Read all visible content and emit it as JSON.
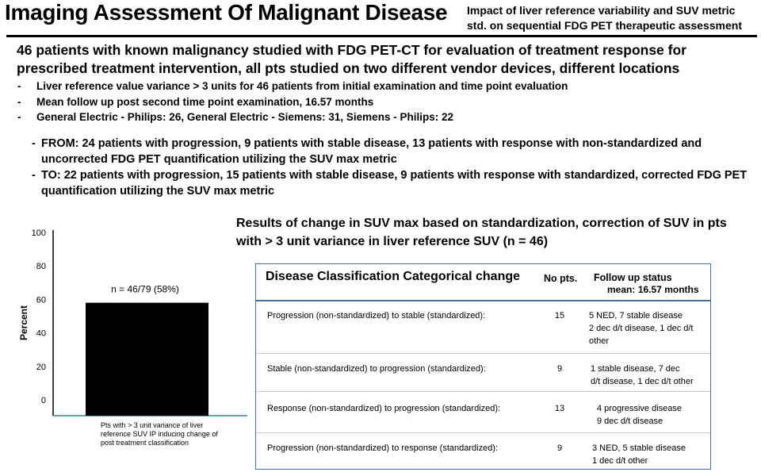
{
  "header": {
    "title": "Imaging Assessment Of Malignant Disease",
    "subtitle": "Impact of liver reference variability  and SUV metric std. on sequential FDG PET therapeutic assessment"
  },
  "lead": "46 patients with known malignancy studied with FDG PET-CT for evaluation of treatment response for prescribed treatment intervention, all pts studied on two different vendor devices, different locations",
  "bullets": [
    "Liver reference value variance > 3 units for 46 patients from initial examination and time point evaluation",
    "Mean follow up post second time point examination, 16.57 months",
    "General Electric - Philips: 26,   General Electric - Siemens: 31,   Siemens - Philips: 22"
  ],
  "from_to": [
    "FROM: 24 patients with progression, 9 patients with stable disease, 13 patients with response with non-standardized  and uncorrected FDG PET quantification  utilizing the SUV max metric",
    "TO: 22 patients with progression, 15 patients with stable disease, 9 patients with response with standardized, corrected FDG PET quantification  utilizing the SUV max metric"
  ],
  "results_heading": "Results of change in SUV max based on standardization, correction of SUV in pts with > 3 unit variance in liver reference SUV (n = 46)",
  "chart_data": {
    "type": "bar",
    "categories": [
      "Pts with > 3 unit variance of liver reference SUV IP inducing change of post treatment classification"
    ],
    "values": [
      58
    ],
    "data_label": "n = 46/79  (58%)",
    "ylabel": "Percent",
    "yticks": [
      0,
      20,
      40,
      60,
      80,
      100
    ],
    "ylim": [
      0,
      100
    ],
    "bar_color": "#000000",
    "baseline_color": "#2e8b8b",
    "grid": false,
    "legend": "none"
  },
  "table": {
    "headers": {
      "classification": "Disease Classification Categorical change",
      "no_pts": "No pts.",
      "follow_up_line1": "Follow up status",
      "follow_up_line2": "mean:",
      "follow_up_value": "16.57 months"
    },
    "rows": [
      {
        "classification": "Progression (non-standardized) to stable (standardized):",
        "no_pts": "15",
        "follow_up": [
          "5 NED, 7 stable disease",
          "2 dec d/t disease, 1 dec d/t",
          "other"
        ]
      },
      {
        "classification": "Stable (non-standardized) to progression (standardized):",
        "no_pts": "9",
        "follow_up": [
          "1 stable disease, 7 dec",
          "d/t disease, 1 dec d/t other"
        ]
      },
      {
        "classification": "Response (non-standardized) to progression (standardized):",
        "no_pts": "13",
        "follow_up": [
          "4 progressive disease",
          "9 dec d/t disease"
        ]
      },
      {
        "classification": "Progression (non-standardized) to response (standardized):",
        "no_pts": "9",
        "follow_up": [
          "3 NED, 5 stable disease",
          "1 dec d/t other"
        ]
      }
    ]
  }
}
